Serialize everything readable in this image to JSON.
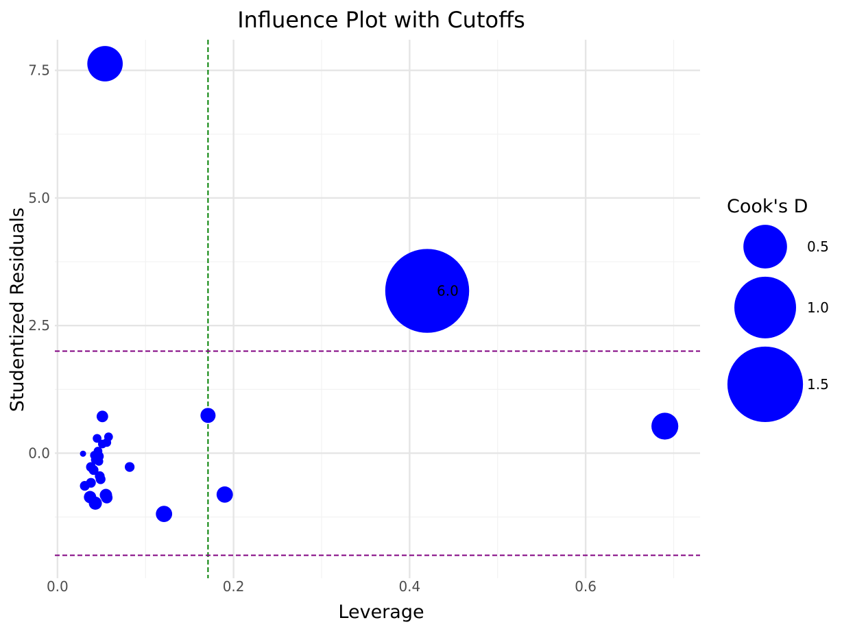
{
  "chart_data": {
    "type": "scatter",
    "title": "Influence Plot with Cutoffs",
    "xlabel": "Leverage",
    "ylabel": "Studentized Residuals",
    "xlim": [
      -0.003,
      0.73
    ],
    "ylim": [
      -2.45,
      8.1
    ],
    "x_ticks": [
      0.0,
      0.2,
      0.4,
      0.6
    ],
    "x_tick_labels": [
      "0.0",
      "0.2",
      "0.4",
      "0.6"
    ],
    "y_ticks": [
      0.0,
      2.5,
      5.0,
      7.5
    ],
    "y_tick_labels": [
      "0.0",
      "2.5",
      "5.0",
      "7.5"
    ],
    "grid": true,
    "point_color": "#0000ff",
    "size_variable": "Cook's D",
    "legend": {
      "title": "Cook's D",
      "placement": "right",
      "entries": [
        {
          "label": "0.5",
          "value": 0.5
        },
        {
          "label": "1.0",
          "value": 1.0
        },
        {
          "label": "1.5",
          "value": 1.5
        }
      ]
    },
    "cutoffs": {
      "leverage": {
        "value": 0.171,
        "color": "#008000",
        "style": "dashed"
      },
      "residual_upper": {
        "value": 2.0,
        "color": "#800080",
        "style": "dashed"
      },
      "residual_lower": {
        "value": -2.0,
        "color": "#800080",
        "style": "dashed"
      }
    },
    "points": [
      {
        "x": 0.054,
        "y": 7.63,
        "cooks_d": 0.33
      },
      {
        "x": 0.42,
        "y": 3.18,
        "cooks_d": 1.85,
        "label": "6.0"
      },
      {
        "x": 0.69,
        "y": 0.53,
        "cooks_d": 0.19
      },
      {
        "x": 0.171,
        "y": 0.74,
        "cooks_d": 0.06
      },
      {
        "x": 0.19,
        "y": -0.81,
        "cooks_d": 0.07
      },
      {
        "x": 0.121,
        "y": -1.19,
        "cooks_d": 0.07
      },
      {
        "x": 0.082,
        "y": -0.27,
        "cooks_d": 0.025
      },
      {
        "x": 0.051,
        "y": 0.72,
        "cooks_d": 0.035
      },
      {
        "x": 0.029,
        "y": -0.01,
        "cooks_d": 0.01
      },
      {
        "x": 0.031,
        "y": -0.64,
        "cooks_d": 0.025
      },
      {
        "x": 0.037,
        "y": -0.86,
        "cooks_d": 0.04
      },
      {
        "x": 0.043,
        "y": -0.98,
        "cooks_d": 0.045
      },
      {
        "x": 0.055,
        "y": -0.82,
        "cooks_d": 0.04
      },
      {
        "x": 0.056,
        "y": -0.87,
        "cooks_d": 0.035
      },
      {
        "x": 0.038,
        "y": -0.58,
        "cooks_d": 0.025
      },
      {
        "x": 0.048,
        "y": -0.45,
        "cooks_d": 0.025
      },
      {
        "x": 0.049,
        "y": -0.51,
        "cooks_d": 0.025
      },
      {
        "x": 0.038,
        "y": -0.27,
        "cooks_d": 0.025
      },
      {
        "x": 0.041,
        "y": -0.33,
        "cooks_d": 0.025
      },
      {
        "x": 0.043,
        "y": -0.13,
        "cooks_d": 0.02
      },
      {
        "x": 0.047,
        "y": -0.16,
        "cooks_d": 0.02
      },
      {
        "x": 0.042,
        "y": -0.04,
        "cooks_d": 0.02
      },
      {
        "x": 0.047,
        "y": -0.06,
        "cooks_d": 0.025
      },
      {
        "x": 0.046,
        "y": 0.04,
        "cooks_d": 0.02
      },
      {
        "x": 0.045,
        "y": 0.29,
        "cooks_d": 0.02
      },
      {
        "x": 0.051,
        "y": 0.18,
        "cooks_d": 0.02
      },
      {
        "x": 0.056,
        "y": 0.21,
        "cooks_d": 0.02
      },
      {
        "x": 0.058,
        "y": 0.32,
        "cooks_d": 0.02
      }
    ]
  }
}
